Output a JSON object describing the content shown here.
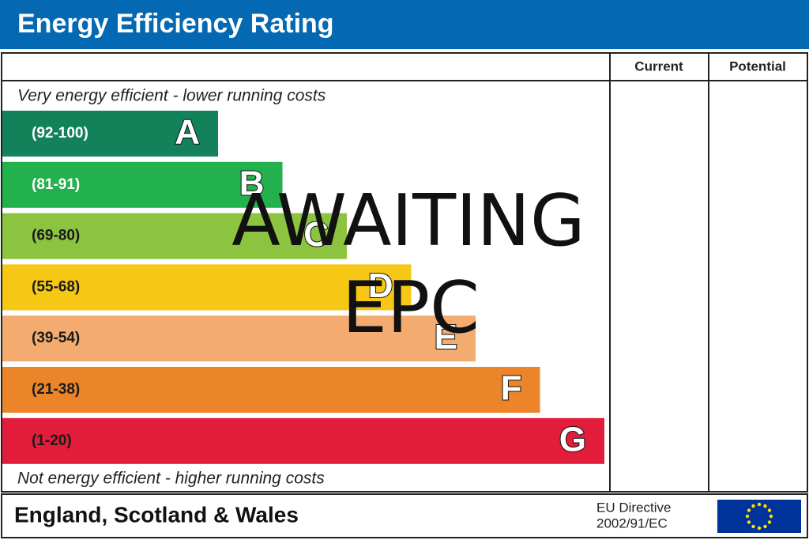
{
  "header": {
    "title": "Energy Efficiency Rating"
  },
  "columns": [
    "Current",
    "Potential"
  ],
  "top_note": "Very energy efficient - lower running costs",
  "bottom_note": "Not energy efficient - higher running costs",
  "bands": [
    {
      "range": "(92-100)",
      "letter": "A",
      "color": "#13825a",
      "text_color": "#ffffff"
    },
    {
      "range": "(81-91)",
      "letter": "B",
      "color": "#22b14c",
      "text_color": "#ffffff"
    },
    {
      "range": "(69-80)",
      "letter": "C",
      "color": "#8cc43f",
      "text_color": "#1a1a1a"
    },
    {
      "range": "(55-68)",
      "letter": "D",
      "color": "#f6c815",
      "text_color": "#1a1a1a"
    },
    {
      "range": "(39-54)",
      "letter": "E",
      "color": "#f3ab70",
      "text_color": "#1a1a1a"
    },
    {
      "range": "(21-38)",
      "letter": "F",
      "color": "#ec852a",
      "text_color": "#1a1a1a"
    },
    {
      "range": "(1-20)",
      "letter": "G",
      "color": "#e21c3b",
      "text_color": "#1a1a1a"
    }
  ],
  "overlay": [
    "AWAITING",
    "EPC"
  ],
  "footer": {
    "region": "England, Scotland & Wales",
    "directive": [
      "EU Directive",
      "2002/91/EC"
    ]
  }
}
